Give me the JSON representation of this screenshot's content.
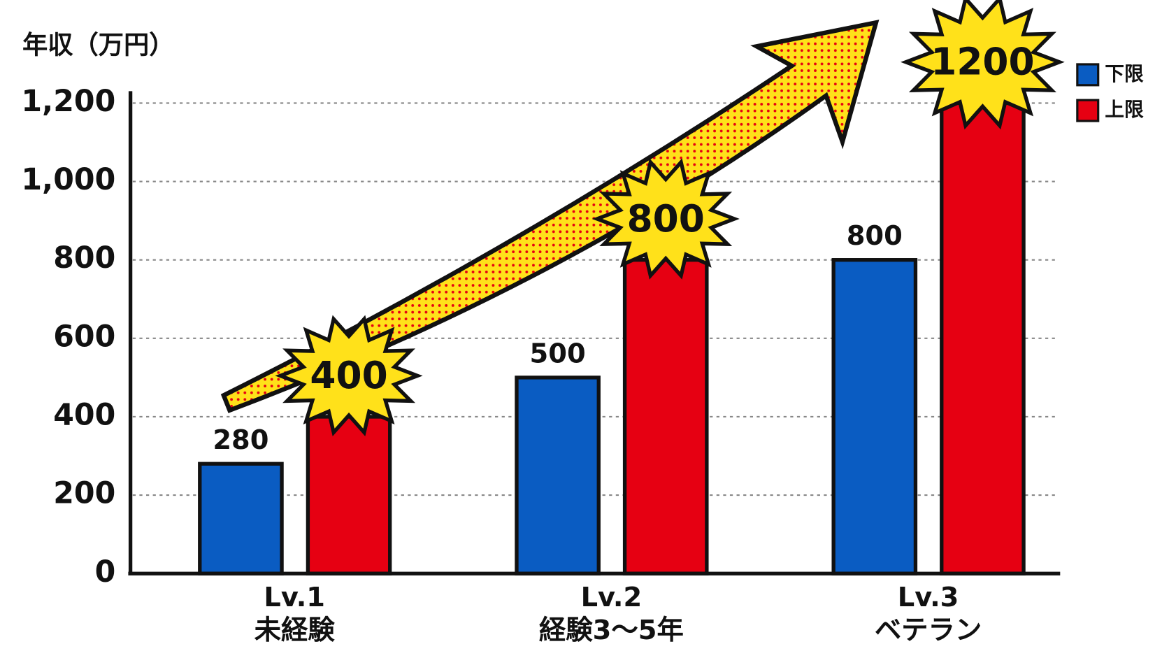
{
  "chart_data": {
    "type": "bar",
    "y_axis_title": "年収（万円）",
    "categories": [
      [
        "Lv.1",
        "未経験"
      ],
      [
        "Lv.2",
        "経験3〜5年"
      ],
      [
        "Lv.3",
        "ベテラン"
      ]
    ],
    "series": [
      {
        "name": "下限",
        "color": "#0a5cc2",
        "values": [
          280,
          500,
          800
        ]
      },
      {
        "name": "上限",
        "color": "#e60012",
        "values": [
          400,
          800,
          1200
        ]
      }
    ],
    "ylim": [
      0,
      1200
    ],
    "yticks": [
      0,
      200,
      400,
      600,
      800,
      {
        "value": 1000,
        "label": "1,000"
      },
      {
        "value": 1200,
        "label": "1,200"
      }
    ],
    "grid": true,
    "legend": "top-right"
  }
}
